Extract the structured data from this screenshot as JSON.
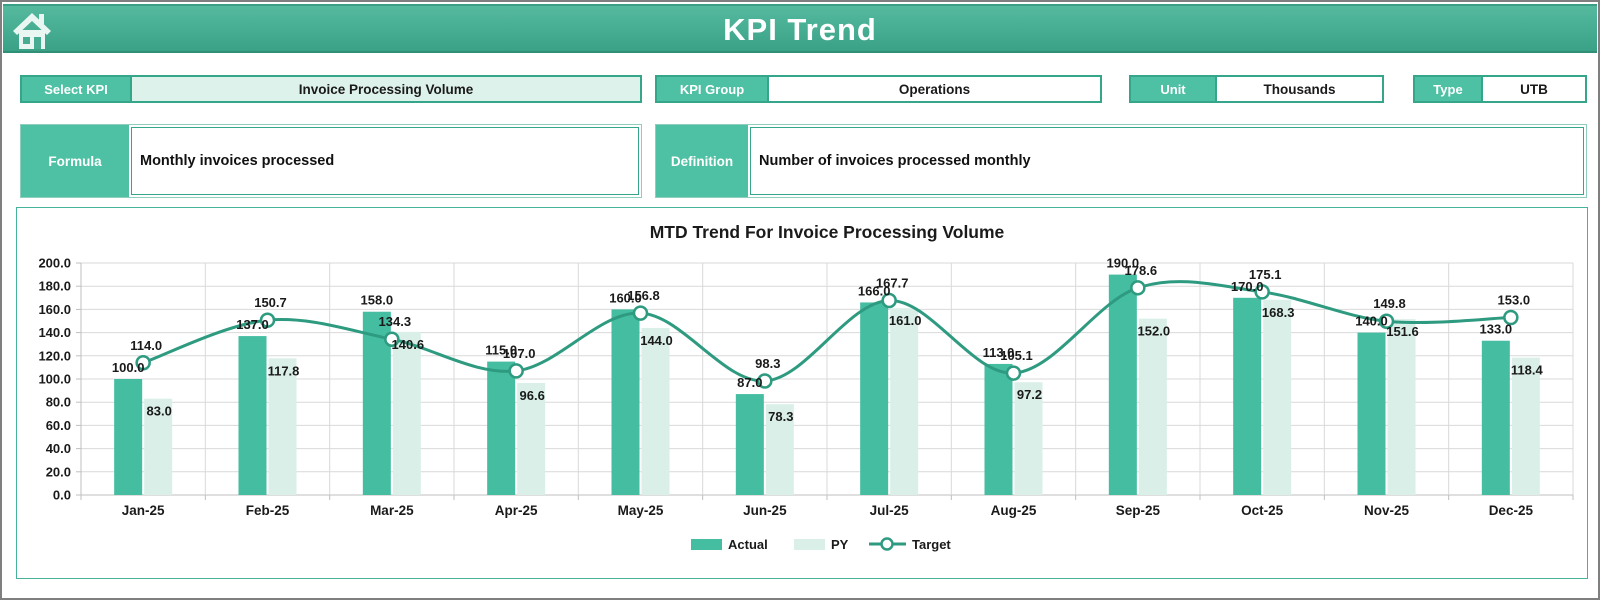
{
  "header": {
    "title": "KPI Trend",
    "home_icon": "home-icon"
  },
  "controls": {
    "select_kpi": {
      "label": "Select KPI",
      "value": "Invoice Processing Volume"
    },
    "kpi_group": {
      "label": "KPI Group",
      "value": "Operations"
    },
    "unit": {
      "label": "Unit",
      "value": "Thousands"
    },
    "type": {
      "label": "Type",
      "value": "UTB"
    }
  },
  "formula": {
    "label": "Formula",
    "value": "Monthly invoices processed"
  },
  "definition": {
    "label": "Definition",
    "value": "Number of invoices processed monthly"
  },
  "chart_data": {
    "type": "bar",
    "subtype": "grouped-bars-with-line",
    "title": "MTD Trend For Invoice Processing Volume",
    "categories": [
      "Jan-25",
      "Feb-25",
      "Mar-25",
      "Apr-25",
      "May-25",
      "Jun-25",
      "Jul-25",
      "Aug-25",
      "Sep-25",
      "Oct-25",
      "Nov-25",
      "Dec-25"
    ],
    "series": [
      {
        "name": "Actual",
        "type": "bar",
        "color": "#44bda0",
        "values": [
          100.0,
          137.0,
          158.0,
          115.0,
          160.0,
          87.0,
          166.0,
          113.0,
          190.0,
          170.0,
          140.0,
          133.0
        ]
      },
      {
        "name": "PY",
        "type": "bar",
        "color": "#d9efe8",
        "values": [
          83.0,
          117.8,
          140.6,
          96.6,
          144.0,
          78.3,
          161.0,
          97.2,
          152.0,
          168.3,
          151.6,
          118.4
        ]
      },
      {
        "name": "Target",
        "type": "line",
        "color": "#2e9b80",
        "marker": "circle-open",
        "values": [
          114.0,
          150.7,
          134.3,
          107.0,
          156.8,
          98.3,
          167.7,
          105.1,
          178.6,
          175.1,
          149.8,
          153.0
        ]
      }
    ],
    "xlabel": "",
    "ylabel": "",
    "ylim": [
      0,
      200
    ],
    "ytick_step": 20,
    "ytick_format_decimals": 1,
    "grid": true,
    "legend_position": "bottom",
    "data_labels": true,
    "label_decimals": 1
  },
  "colors": {
    "accent_teal": "#4ec0a3",
    "border_teal": "#35a68a",
    "header_teal": "#46ad92",
    "bar_actual": "#44bda0",
    "bar_py": "#d9efe8",
    "line_target": "#2e9b80",
    "gridline": "#d9d9d9",
    "axis_line": "#bfbfbf",
    "text_dark": "#1a1a1a",
    "select_value_bg": "#ddf2ea",
    "page_border": "#7f7f7f"
  }
}
